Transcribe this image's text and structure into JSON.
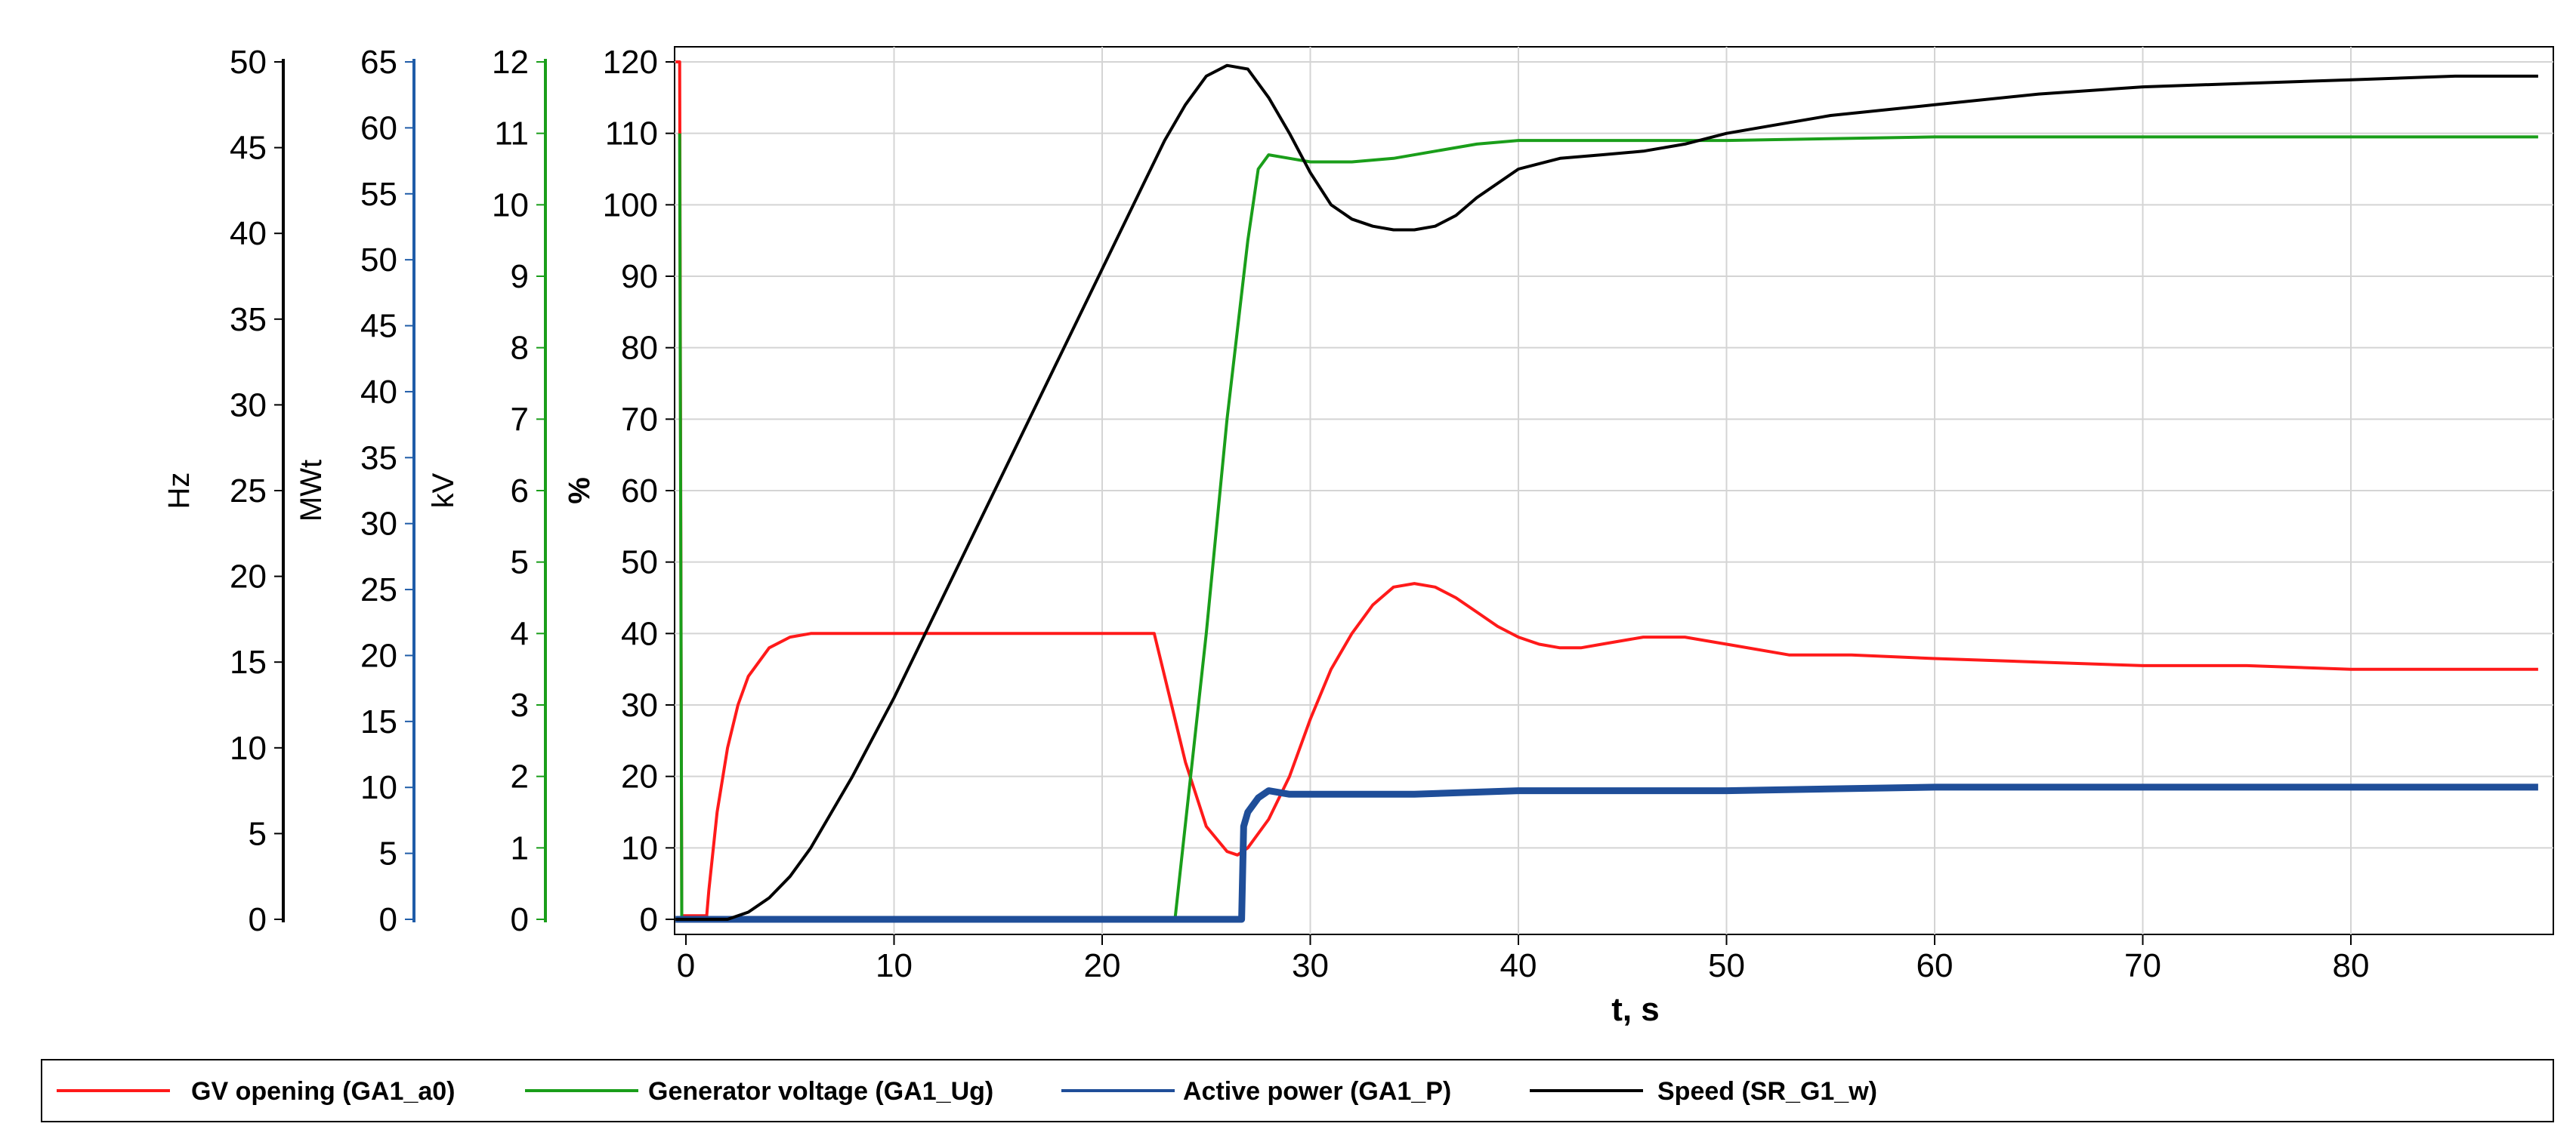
{
  "chart_data": {
    "type": "line",
    "xlabel": "t, s",
    "xlim": [
      -0.5,
      89
    ],
    "xticks": [
      0,
      10,
      20,
      30,
      40,
      50,
      60,
      70,
      80
    ],
    "grid": true,
    "legend_position": "bottom",
    "axes": [
      {
        "id": "pct",
        "label": "%",
        "range": [
          0,
          120
        ],
        "ticks": [
          0,
          10,
          20,
          30,
          40,
          50,
          60,
          70,
          80,
          90,
          100,
          110,
          120
        ],
        "color": "#000000"
      },
      {
        "id": "kv",
        "label": "kV",
        "range": [
          0,
          12
        ],
        "ticks": [
          0,
          1,
          2,
          3,
          4,
          5,
          6,
          7,
          8,
          9,
          10,
          11,
          12
        ],
        "color": "#1a9e1a"
      },
      {
        "id": "mwt",
        "label": "MWt",
        "range": [
          0,
          65
        ],
        "ticks": [
          0,
          5,
          10,
          15,
          20,
          25,
          30,
          35,
          40,
          45,
          50,
          55,
          60,
          65
        ],
        "color": "#1f5ca8"
      },
      {
        "id": "hz",
        "label": "Hz",
        "range": [
          0,
          50
        ],
        "ticks": [
          0,
          5,
          10,
          15,
          20,
          25,
          30,
          35,
          40,
          45,
          50
        ],
        "color": "#000000"
      }
    ],
    "series": [
      {
        "name": "GV opening (GA1_a0)",
        "color": "#ff1a1a",
        "axis": "pct",
        "x": [
          -0.5,
          -0.3,
          -0.2,
          0,
          0.5,
          1,
          1.1,
          1.5,
          2,
          2.5,
          3,
          4,
          5,
          6,
          8,
          10,
          15,
          20,
          22.5,
          23,
          24,
          25,
          26,
          26.5,
          27,
          28,
          29,
          30,
          31,
          32,
          33,
          34,
          35,
          36,
          37,
          38,
          39,
          40,
          41,
          42,
          43,
          44,
          46,
          48,
          50,
          53,
          56,
          60,
          65,
          70,
          75,
          80,
          85,
          89
        ],
        "y": [
          120,
          120,
          0.5,
          0.5,
          0.5,
          0.5,
          4,
          15,
          24,
          30,
          34,
          38,
          39.5,
          40,
          40,
          40,
          40,
          40,
          40,
          34,
          22,
          13,
          9.5,
          9,
          10,
          14,
          20,
          28,
          35,
          40,
          44,
          46.5,
          47,
          46.5,
          45,
          43,
          41,
          39.5,
          38.5,
          38,
          38,
          38.5,
          39.5,
          39.5,
          38.5,
          37,
          37,
          36.5,
          36,
          35.5,
          35.5,
          35,
          35,
          35
        ]
      },
      {
        "name": "Generator voltage (GA1_Ug)",
        "color": "#1a9e1a",
        "axis": "pct",
        "x": [
          -0.3,
          -0.2,
          0,
          23,
          23.5,
          25,
          26,
          27,
          27.5,
          28,
          29,
          30,
          31,
          32,
          34,
          36,
          38,
          40,
          45,
          50,
          60,
          70,
          80,
          89
        ],
        "y": [
          110,
          0,
          0,
          0,
          0,
          40,
          70,
          95,
          105,
          107,
          106.5,
          106,
          106,
          106,
          106.5,
          107.5,
          108.5,
          109,
          109,
          109,
          109.5,
          109.5,
          109.5,
          109.5
        ]
      },
      {
        "name": "Active power (GA1_P)",
        "color": "#1f4e99",
        "axis": "pct",
        "x": [
          -0.5,
          26.7,
          26.8,
          27,
          27.5,
          28,
          29,
          30,
          35,
          40,
          50,
          60,
          70,
          80,
          89
        ],
        "y": [
          0,
          0,
          13,
          15,
          17,
          18,
          17.5,
          17.5,
          17.5,
          18,
          18,
          18.5,
          18.5,
          18.5,
          18.5
        ]
      },
      {
        "name": "Speed (SR_G1_w)",
        "color": "#000000",
        "axis": "pct",
        "x": [
          -0.5,
          0,
          1,
          2,
          3,
          4,
          5,
          6,
          8,
          10,
          12,
          14,
          16,
          18,
          20,
          22,
          23,
          24,
          25,
          26,
          27,
          28,
          29,
          30,
          31,
          32,
          33,
          34,
          35,
          36,
          37,
          38,
          40,
          42,
          44,
          46,
          48,
          50,
          52,
          55,
          60,
          65,
          70,
          75,
          80,
          85,
          89
        ],
        "y": [
          0,
          0,
          0,
          0,
          1,
          3,
          6,
          10,
          20,
          31,
          43,
          55,
          67,
          79,
          91,
          103,
          109,
          114,
          118,
          119.5,
          119,
          115,
          110,
          104.5,
          100,
          98,
          97,
          96.5,
          96.5,
          97,
          98.5,
          101,
          105,
          106.5,
          107,
          107.5,
          108.5,
          110,
          111,
          112.5,
          114,
          115.5,
          116.5,
          117,
          117.5,
          118,
          118
        ]
      }
    ]
  }
}
